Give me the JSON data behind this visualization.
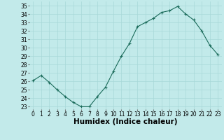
{
  "x": [
    0,
    1,
    2,
    3,
    4,
    5,
    6,
    7,
    8,
    9,
    10,
    11,
    12,
    13,
    14,
    15,
    16,
    17,
    18,
    19,
    20,
    21,
    22,
    23
  ],
  "y": [
    26.1,
    26.7,
    25.9,
    25.0,
    24.2,
    23.5,
    23.0,
    23.0,
    24.2,
    25.3,
    27.2,
    29.0,
    30.5,
    32.5,
    33.0,
    33.5,
    34.2,
    34.4,
    34.9,
    34.0,
    33.3,
    32.0,
    30.3,
    29.2
  ],
  "line_color": "#1a6b5a",
  "marker": "+",
  "marker_color": "#1a6b5a",
  "bg_color": "#c2eaea",
  "grid_color": "#a8d8d8",
  "xlabel": "Humidex (Indice chaleur)",
  "xlim": [
    -0.5,
    23.5
  ],
  "ylim": [
    22.7,
    35.5
  ],
  "yticks": [
    23,
    24,
    25,
    26,
    27,
    28,
    29,
    30,
    31,
    32,
    33,
    34,
    35
  ],
  "xticks": [
    0,
    1,
    2,
    3,
    4,
    5,
    6,
    7,
    8,
    9,
    10,
    11,
    12,
    13,
    14,
    15,
    16,
    17,
    18,
    19,
    20,
    21,
    22,
    23
  ],
  "tick_label_fontsize": 5.5,
  "xlabel_fontsize": 7.5
}
